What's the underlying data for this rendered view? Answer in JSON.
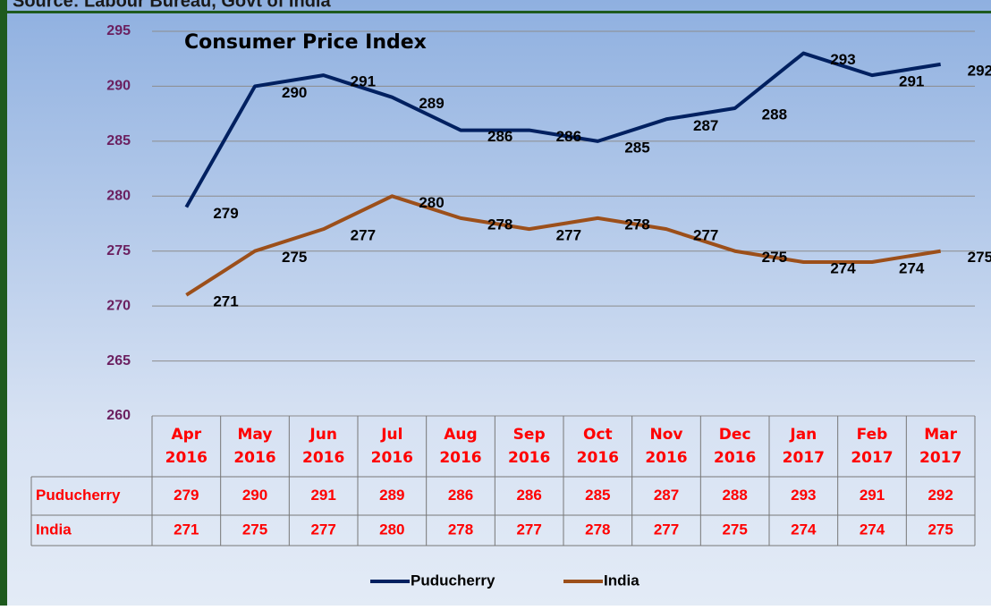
{
  "chart_data": {
    "type": "line",
    "title": "Consumer Price Index",
    "source": "Source: Labour Bureau, Govt of India",
    "categories": [
      "Apr 2016",
      "May 2016",
      "Jun 2016",
      "Jul 2016",
      "Aug 2016",
      "Sep 2016",
      "Oct 2016",
      "Nov 2016",
      "Dec 2016",
      "Jan 2017",
      "Feb 2017",
      "Mar 2017"
    ],
    "series": [
      {
        "name": "Puducherry",
        "color": "#002060",
        "values": [
          279,
          290,
          291,
          289,
          286,
          286,
          285,
          287,
          288,
          293,
          291,
          292
        ]
      },
      {
        "name": "India",
        "color": "#9c4f1a",
        "values": [
          271,
          275,
          277,
          280,
          278,
          277,
          278,
          277,
          275,
          274,
          274,
          275
        ]
      }
    ],
    "ylim": [
      260,
      295
    ],
    "yticks": [
      260,
      265,
      270,
      275,
      280,
      285,
      290,
      295
    ],
    "grid": true,
    "legend": "bottom"
  }
}
